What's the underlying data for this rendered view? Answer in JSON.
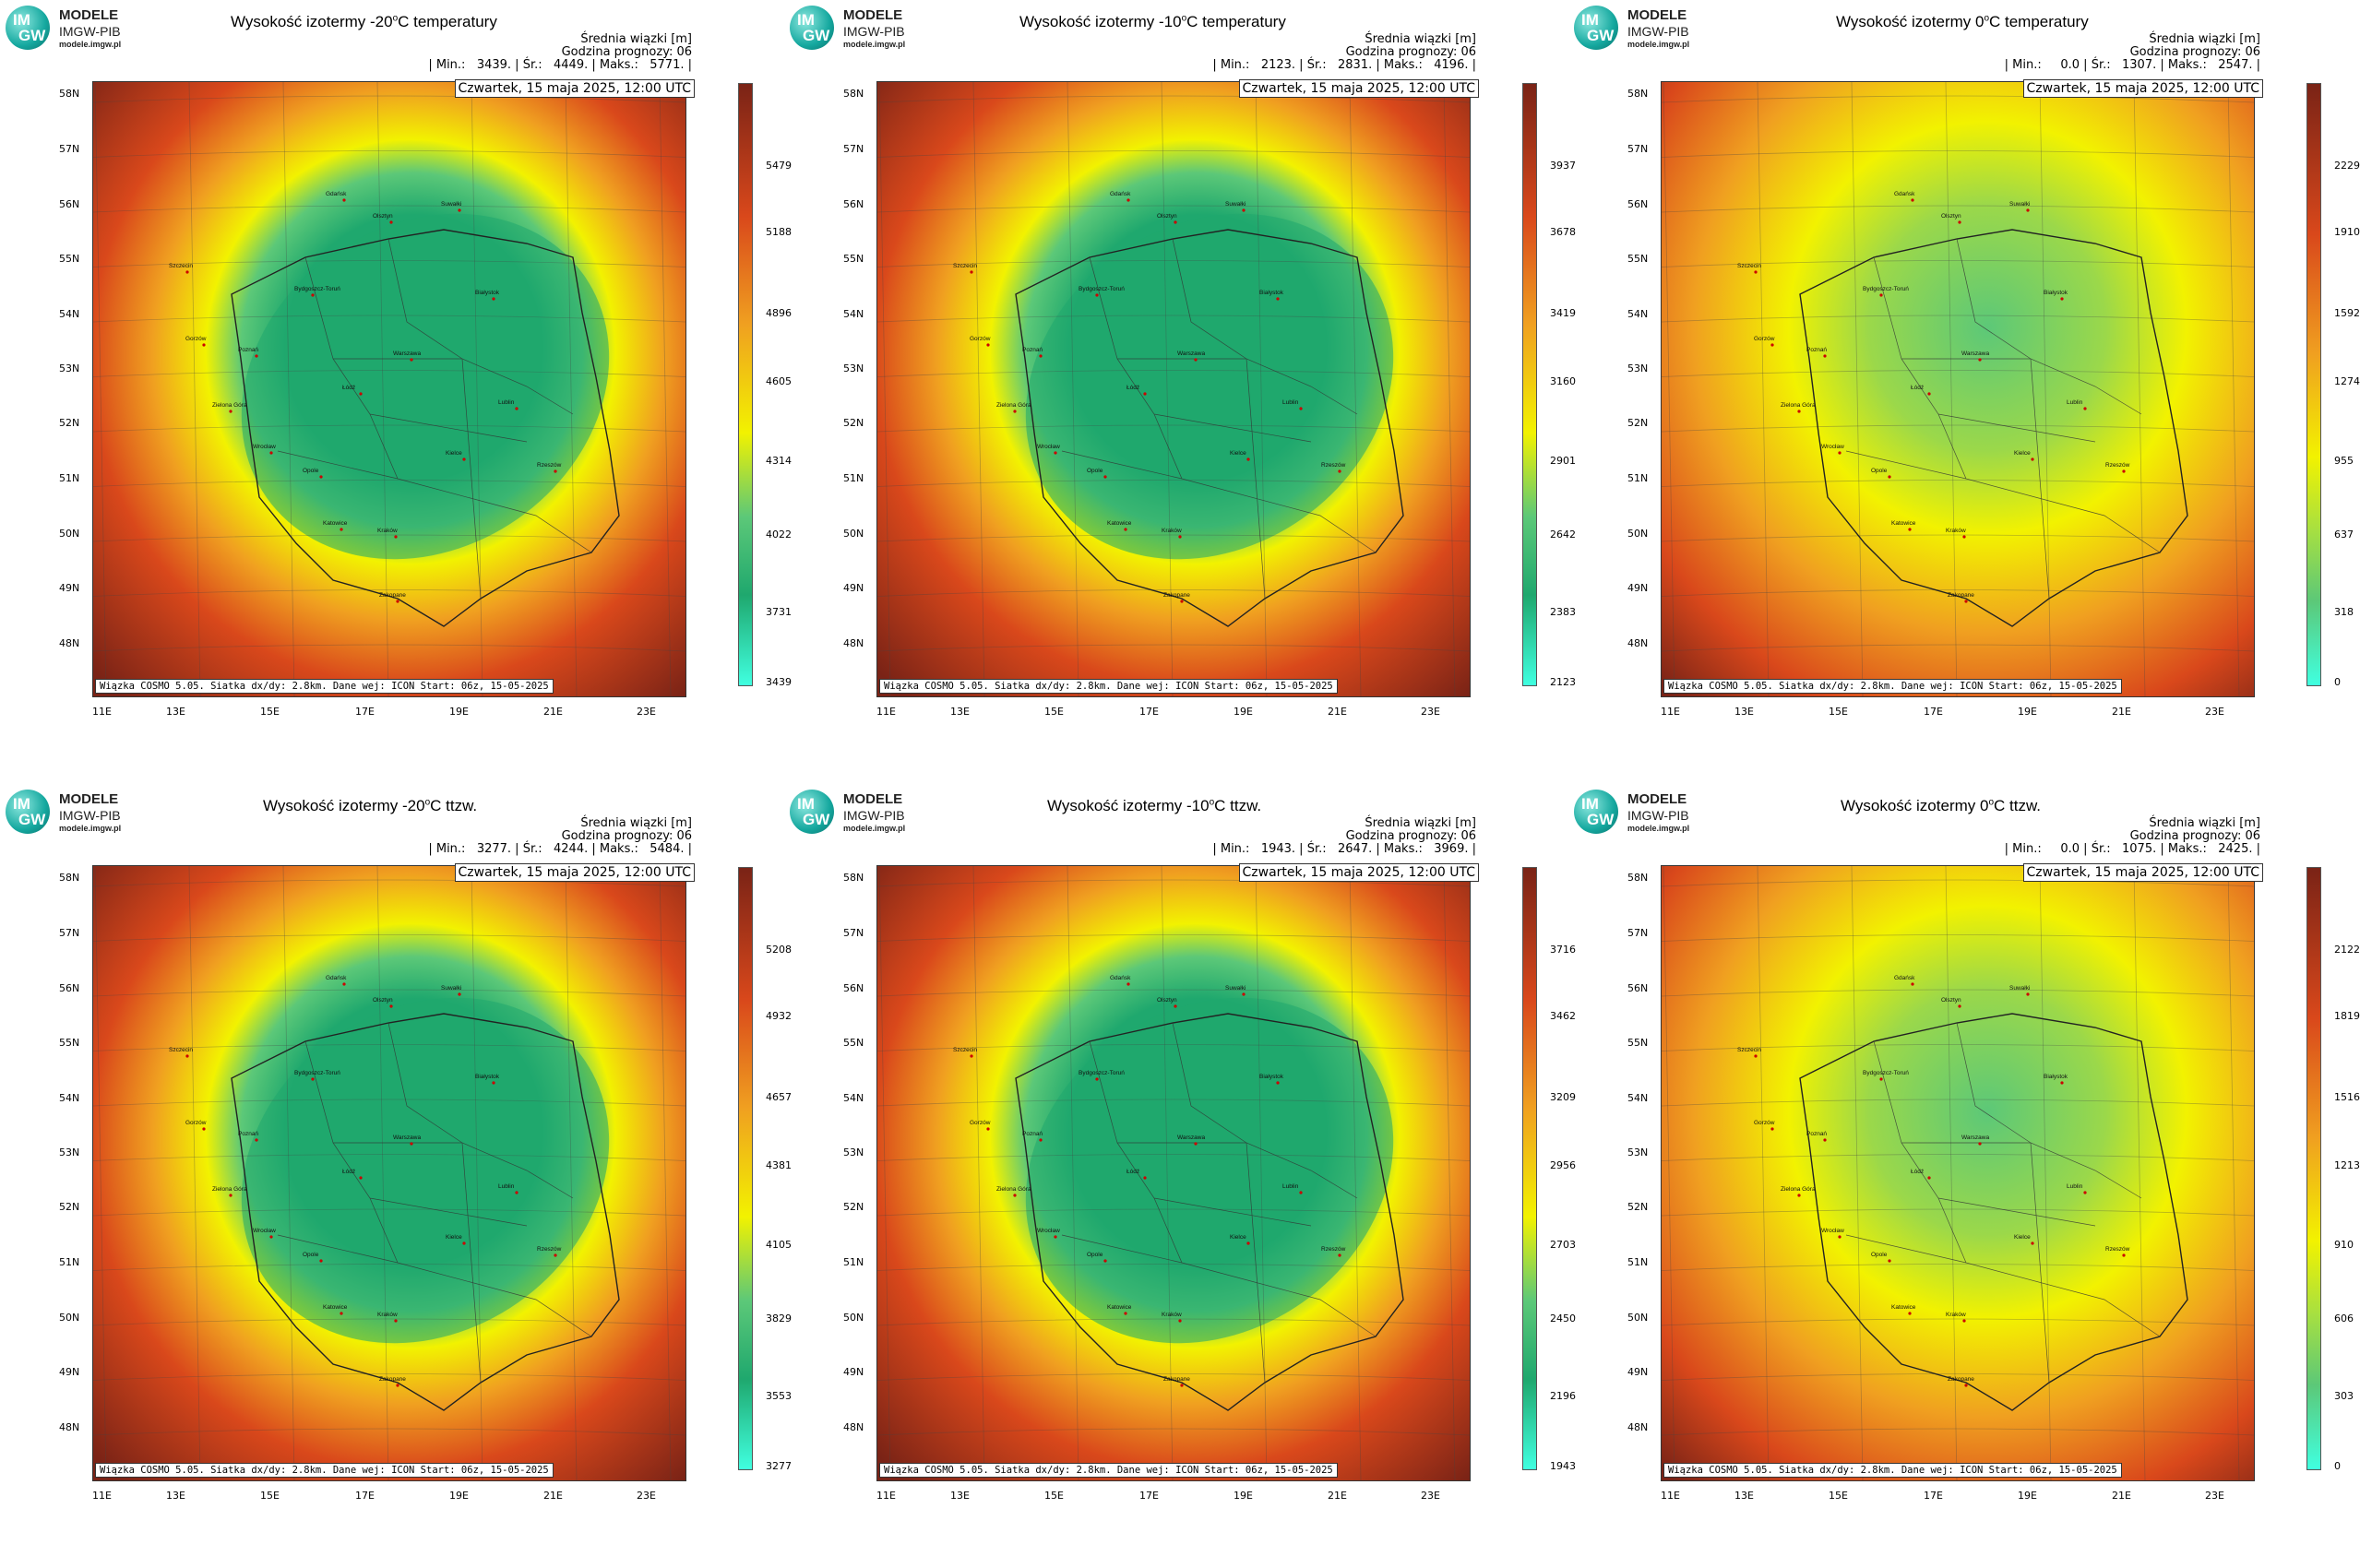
{
  "logo": {
    "abbr_top": "IM",
    "abbr_bottom": "GW",
    "line1": "MODELE",
    "line2": "IMGW-PIB",
    "line3": "modele.imgw.pl"
  },
  "lat_labels": [
    "58N",
    "57N",
    "56N",
    "55N",
    "54N",
    "53N",
    "52N",
    "51N",
    "50N",
    "49N",
    "48N"
  ],
  "lon_labels": [
    "11E",
    "13E",
    "15E",
    "17E",
    "19E",
    "21E",
    "23E"
  ],
  "info_heading": "Średnia wiązki [m]",
  "forecast_hour_label": "Godzina prognozy: 06",
  "date_label": "Czwartek, 15 maja 2025, 12:00 UTC",
  "footer_label": "Wiązka COSMO 5.05. Siatka dx/dy: 2.8km. Dane wej: ICON Start: 06z, 15-05-2025",
  "colors": {
    "green_core": "#1fa86e",
    "green_light": "#5cc878",
    "yellow": "#f2f200",
    "orange": "#f0a020",
    "red": "#d9481b",
    "dark_red": "#7a2316"
  },
  "cities": [
    "Gdańsk",
    "Olsztyn",
    "Suwałki",
    "Szczecin",
    "Bydgoszcz-Toruń",
    "Białystok",
    "Gorzów",
    "Poznań",
    "Warszawa",
    "Zielona Góra",
    "Łódź",
    "Lublin",
    "Wrocław",
    "Kielce",
    "Opole",
    "Rzeszów",
    "Katowice",
    "Kraków",
    "Zakopane"
  ],
  "panels": [
    {
      "title_pre": "Wysokość izotermy -20",
      "title_post": "C temperatury",
      "stats": "| Min.:   3439. | Śr.:   4449. | Maks.:   5771. |",
      "colorbar_ticks": [
        "5479",
        "5188",
        "4896",
        "4605",
        "4314",
        "4022",
        "3731",
        "3439"
      ],
      "variant": "ring"
    },
    {
      "title_pre": "Wysokość izotermy -10",
      "title_post": "C temperatury",
      "stats": "| Min.:   2123. | Śr.:   2831. | Maks.:   4196. |",
      "colorbar_ticks": [
        "3937",
        "3678",
        "3419",
        "3160",
        "2901",
        "2642",
        "2383",
        "2123"
      ],
      "variant": "ring"
    },
    {
      "title_pre": "Wysokość izotermy 0",
      "title_post": "C temperatury",
      "stats": "| Min.:     0.0 | Śr.:   1307. | Maks.:   2547. |",
      "colorbar_ticks": [
        "2229",
        "1910",
        "1592",
        "1274",
        "955",
        "637",
        "318",
        "0"
      ],
      "variant": "flat"
    },
    {
      "title_pre": "Wysokość izotermy -20",
      "title_post": "C ttzw.",
      "stats": "| Min.:   3277. | Śr.:   4244. | Maks.:   5484. |",
      "colorbar_ticks": [
        "5208",
        "4932",
        "4657",
        "4381",
        "4105",
        "3829",
        "3553",
        "3277"
      ],
      "variant": "ring"
    },
    {
      "title_pre": "Wysokość izotermy -10",
      "title_post": "C ttzw.",
      "stats": "| Min.:   1943. | Śr.:   2647. | Maks.:   3969. |",
      "colorbar_ticks": [
        "3716",
        "3462",
        "3209",
        "2956",
        "2703",
        "2450",
        "2196",
        "1943"
      ],
      "variant": "ring"
    },
    {
      "title_pre": "Wysokość izotermy 0",
      "title_post": "C ttzw.",
      "stats": "| Min.:     0.0 | Śr.:   1075. | Maks.:   2425. |",
      "colorbar_ticks": [
        "2122",
        "1819",
        "1516",
        "1213",
        "910",
        "606",
        "303",
        "0"
      ],
      "variant": "flat"
    }
  ]
}
